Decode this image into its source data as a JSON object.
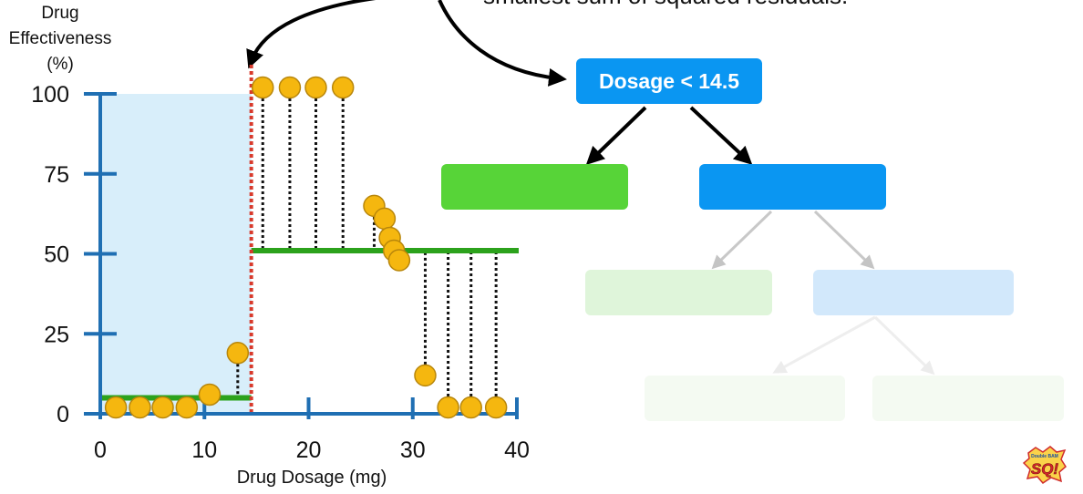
{
  "header": {
    "caption_fragment": "smallest sum of squared residuals."
  },
  "chart_data": {
    "type": "scatter",
    "ylabel": [
      "Drug",
      "Effectiveness",
      "(%)"
    ],
    "xlabel": "Drug Dosage (mg)",
    "xlim": [
      0,
      40
    ],
    "ylim": [
      0,
      100
    ],
    "xticks": [
      0,
      10,
      20,
      30,
      40
    ],
    "yticks": [
      0,
      25,
      50,
      75,
      100
    ],
    "grid": false,
    "threshold": 14.5,
    "points": [
      {
        "x": 1.5,
        "y": 2
      },
      {
        "x": 3.8,
        "y": 2
      },
      {
        "x": 6,
        "y": 2
      },
      {
        "x": 8.3,
        "y": 2
      },
      {
        "x": 10.5,
        "y": 6
      },
      {
        "x": 13.2,
        "y": 19
      },
      {
        "x": 15.6,
        "y": 102
      },
      {
        "x": 18.2,
        "y": 102
      },
      {
        "x": 20.7,
        "y": 102
      },
      {
        "x": 23.3,
        "y": 102
      },
      {
        "x": 26.3,
        "y": 65
      },
      {
        "x": 27.3,
        "y": 61
      },
      {
        "x": 27.8,
        "y": 55
      },
      {
        "x": 28.2,
        "y": 51
      },
      {
        "x": 28.7,
        "y": 48
      },
      {
        "x": 31.2,
        "y": 12
      },
      {
        "x": 33.4,
        "y": 2
      },
      {
        "x": 35.6,
        "y": 2
      },
      {
        "x": 38,
        "y": 2
      }
    ],
    "segments": [
      {
        "x_from": 0,
        "x_to": 14.5,
        "y": 5
      },
      {
        "x_from": 14.5,
        "x_to": 40,
        "y": 51
      }
    ],
    "region": {
      "x_from": 0,
      "x_to": 14.5,
      "y_from": 0,
      "y_to": 100
    }
  },
  "tree": {
    "root_label": "Dosage < 14.5",
    "colors": {
      "root": "#0a96f2",
      "left_leaf": "#57d438",
      "right_node": "#0a96f2",
      "faded_green": "#dff5da",
      "faded_blue": "#d2e8fb",
      "faint_green": "#f4faf2"
    }
  },
  "colors": {
    "axis": "#1f6fb3",
    "point_fill": "#f5b70f",
    "point_stroke": "#b8860b",
    "segment": "#2ca21c",
    "region": "#d8eefa",
    "threshold": "#d83a2c"
  },
  "logo": {
    "text": "SQ!",
    "small_text": "Double BAM"
  }
}
